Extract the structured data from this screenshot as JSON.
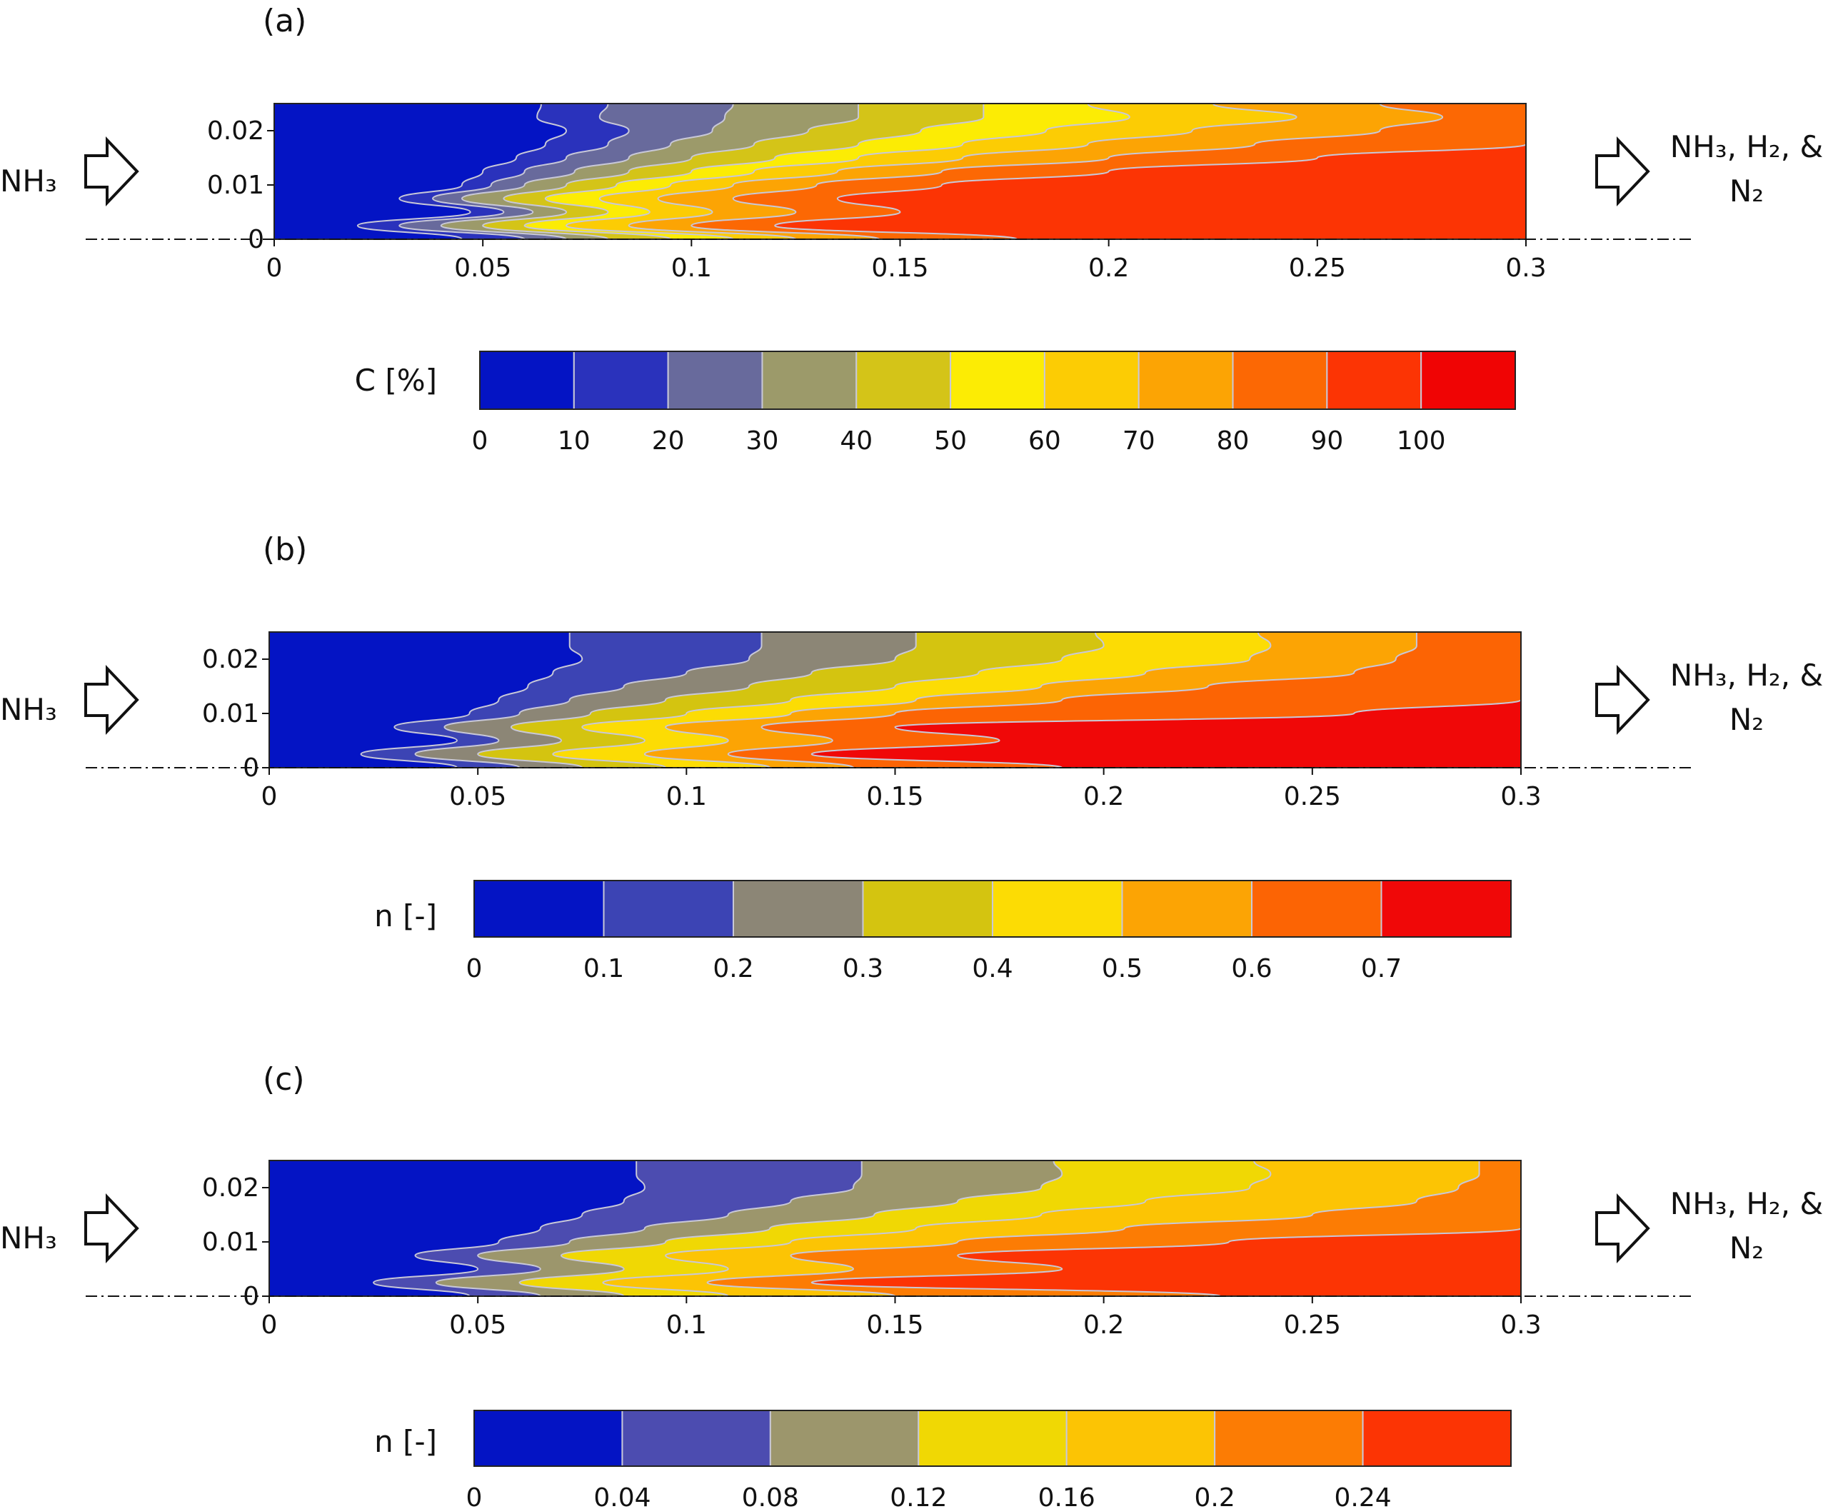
{
  "chart_data": [
    {
      "type": "heatmap",
      "panel_label": "(a)",
      "inlet_label": "NH₃",
      "outlet_label_line1": "NH₃, H₂, &",
      "outlet_label_line2": "N₂",
      "xlim": [
        0,
        0.3
      ],
      "ylim": [
        0,
        0.025
      ],
      "x_ticks": [
        "0",
        "0.05",
        "0.1",
        "0.15",
        "0.2",
        "0.25",
        "0.3"
      ],
      "y_ticks": [
        "0.02",
        "0.01",
        "0"
      ],
      "colorbar": {
        "label": "C [%]",
        "ticks": [
          "0",
          "10",
          "20",
          "30",
          "40",
          "50",
          "60",
          "70",
          "80",
          "90",
          "100"
        ],
        "levels": [
          0,
          10,
          20,
          30,
          40,
          50,
          60,
          70,
          80,
          90,
          100,
          110
        ],
        "colors": [
          "#0414c4",
          "#2a32bc",
          "#686a9c",
          "#9c9a6a",
          "#d4c418",
          "#fcec04",
          "#fccc04",
          "#fca404",
          "#fc6804",
          "#fc3404",
          "#f00404"
        ]
      },
      "contour_front_x": {
        "y_values": [
          0,
          0.0025,
          0.005,
          0.0075,
          0.01,
          0.0125,
          0.015,
          0.0175,
          0.02,
          0.0225,
          0.025
        ],
        "boundaries": [
          [
            0.045,
            0.02,
            0.047,
            0.03,
            0.045,
            0.05,
            0.058,
            0.065,
            0.07,
            0.063,
            0.064
          ],
          [
            0.06,
            0.03,
            0.055,
            0.038,
            0.052,
            0.06,
            0.07,
            0.08,
            0.085,
            0.078,
            0.08
          ],
          [
            0.07,
            0.04,
            0.062,
            0.045,
            0.06,
            0.072,
            0.085,
            0.095,
            0.105,
            0.108,
            0.11
          ],
          [
            0.08,
            0.05,
            0.07,
            0.055,
            0.07,
            0.085,
            0.1,
            0.115,
            0.128,
            0.14,
            0.14
          ],
          [
            0.095,
            0.06,
            0.08,
            0.065,
            0.082,
            0.1,
            0.12,
            0.14,
            0.155,
            0.17,
            0.17
          ],
          [
            0.11,
            0.07,
            0.09,
            0.078,
            0.095,
            0.115,
            0.14,
            0.165,
            0.185,
            0.205,
            0.195
          ],
          [
            0.125,
            0.085,
            0.105,
            0.092,
            0.11,
            0.135,
            0.165,
            0.195,
            0.22,
            0.245,
            0.225
          ],
          [
            0.145,
            0.1,
            0.125,
            0.11,
            0.13,
            0.16,
            0.2,
            0.235,
            0.265,
            0.28,
            0.265
          ],
          [
            0.178,
            0.12,
            0.15,
            0.135,
            0.16,
            0.2,
            0.25,
            0.3,
            0.3,
            0.3,
            0.3
          ],
          [
            0.3,
            0.3,
            0.3,
            0.3,
            0.3,
            0.3,
            0.3,
            0.3,
            0.3,
            0.3,
            0.3
          ]
        ]
      }
    },
    {
      "type": "heatmap",
      "panel_label": "(b)",
      "inlet_label": "NH₃",
      "outlet_label_line1": "NH₃, H₂, &",
      "outlet_label_line2": "N₂",
      "xlim": [
        0,
        0.3
      ],
      "ylim": [
        0,
        0.025
      ],
      "x_ticks": [
        "0",
        "0.05",
        "0.1",
        "0.15",
        "0.2",
        "0.25",
        "0.3"
      ],
      "y_ticks": [
        "0.02",
        "0.01",
        "0"
      ],
      "colorbar": {
        "label": "n [-]",
        "ticks": [
          "0",
          "0.1",
          "0.2",
          "0.3",
          "0.4",
          "0.5",
          "0.6",
          "0.7"
        ],
        "levels": [
          0,
          0.1,
          0.2,
          0.3,
          0.4,
          0.5,
          0.6,
          0.7,
          0.8
        ],
        "colors": [
          "#0414c4",
          "#3c44b4",
          "#8c8676",
          "#d4c410",
          "#fcdc04",
          "#fca404",
          "#fc6404",
          "#f00808"
        ]
      },
      "contour_front_x": {
        "y_values": [
          0,
          0.0025,
          0.005,
          0.0075,
          0.01,
          0.0125,
          0.015,
          0.0175,
          0.02,
          0.0225,
          0.025
        ],
        "boundaries": [
          [
            0.045,
            0.022,
            0.045,
            0.03,
            0.048,
            0.055,
            0.062,
            0.068,
            0.075,
            0.072,
            0.072
          ],
          [
            0.06,
            0.035,
            0.055,
            0.042,
            0.06,
            0.072,
            0.085,
            0.1,
            0.115,
            0.118,
            0.118
          ],
          [
            0.075,
            0.05,
            0.07,
            0.058,
            0.077,
            0.095,
            0.115,
            0.13,
            0.15,
            0.155,
            0.155
          ],
          [
            0.095,
            0.068,
            0.09,
            0.075,
            0.1,
            0.125,
            0.15,
            0.17,
            0.19,
            0.2,
            0.198
          ],
          [
            0.12,
            0.09,
            0.11,
            0.095,
            0.125,
            0.155,
            0.185,
            0.21,
            0.235,
            0.24,
            0.237
          ],
          [
            0.14,
            0.11,
            0.135,
            0.118,
            0.15,
            0.19,
            0.225,
            0.26,
            0.27,
            0.275,
            0.275
          ],
          [
            0.19,
            0.13,
            0.175,
            0.15,
            0.26,
            0.3,
            0.3,
            0.3,
            0.3,
            0.3,
            0.3
          ]
        ]
      }
    },
    {
      "type": "heatmap",
      "panel_label": "(c)",
      "inlet_label": "NH₃",
      "outlet_label_line1": "NH₃, H₂, &",
      "outlet_label_line2": "N₂",
      "xlim": [
        0,
        0.3
      ],
      "ylim": [
        0,
        0.025
      ],
      "x_ticks": [
        "0",
        "0.05",
        "0.1",
        "0.15",
        "0.2",
        "0.25",
        "0.3"
      ],
      "y_ticks": [
        "0.02",
        "0.01",
        "0"
      ],
      "colorbar": {
        "label": "n [-]",
        "ticks": [
          "0",
          "0.04",
          "0.08",
          "0.12",
          "0.16",
          "0.2",
          "0.24"
        ],
        "levels": [
          0,
          0.04,
          0.08,
          0.12,
          0.16,
          0.2,
          0.24,
          0.28
        ],
        "colors": [
          "#0414c4",
          "#4c4cb0",
          "#9c966c",
          "#f0d804",
          "#fcc404",
          "#fc7c04",
          "#fc3404"
        ]
      },
      "contour_front_x": {
        "y_values": [
          0,
          0.0025,
          0.005,
          0.0075,
          0.01,
          0.0125,
          0.015,
          0.0175,
          0.02,
          0.0225,
          0.025
        ],
        "boundaries": [
          [
            0.048,
            0.025,
            0.05,
            0.035,
            0.055,
            0.065,
            0.075,
            0.085,
            0.09,
            0.088,
            0.088
          ],
          [
            0.065,
            0.04,
            0.065,
            0.05,
            0.072,
            0.09,
            0.11,
            0.125,
            0.14,
            0.142,
            0.142
          ],
          [
            0.085,
            0.06,
            0.085,
            0.07,
            0.095,
            0.12,
            0.145,
            0.165,
            0.185,
            0.19,
            0.188
          ],
          [
            0.11,
            0.08,
            0.11,
            0.095,
            0.125,
            0.155,
            0.185,
            0.21,
            0.235,
            0.24,
            0.236
          ],
          [
            0.15,
            0.105,
            0.14,
            0.125,
            0.165,
            0.205,
            0.25,
            0.275,
            0.285,
            0.29,
            0.29
          ],
          [
            0.228,
            0.13,
            0.19,
            0.165,
            0.23,
            0.3,
            0.3,
            0.3,
            0.3,
            0.3,
            0.3
          ]
        ]
      }
    }
  ]
}
